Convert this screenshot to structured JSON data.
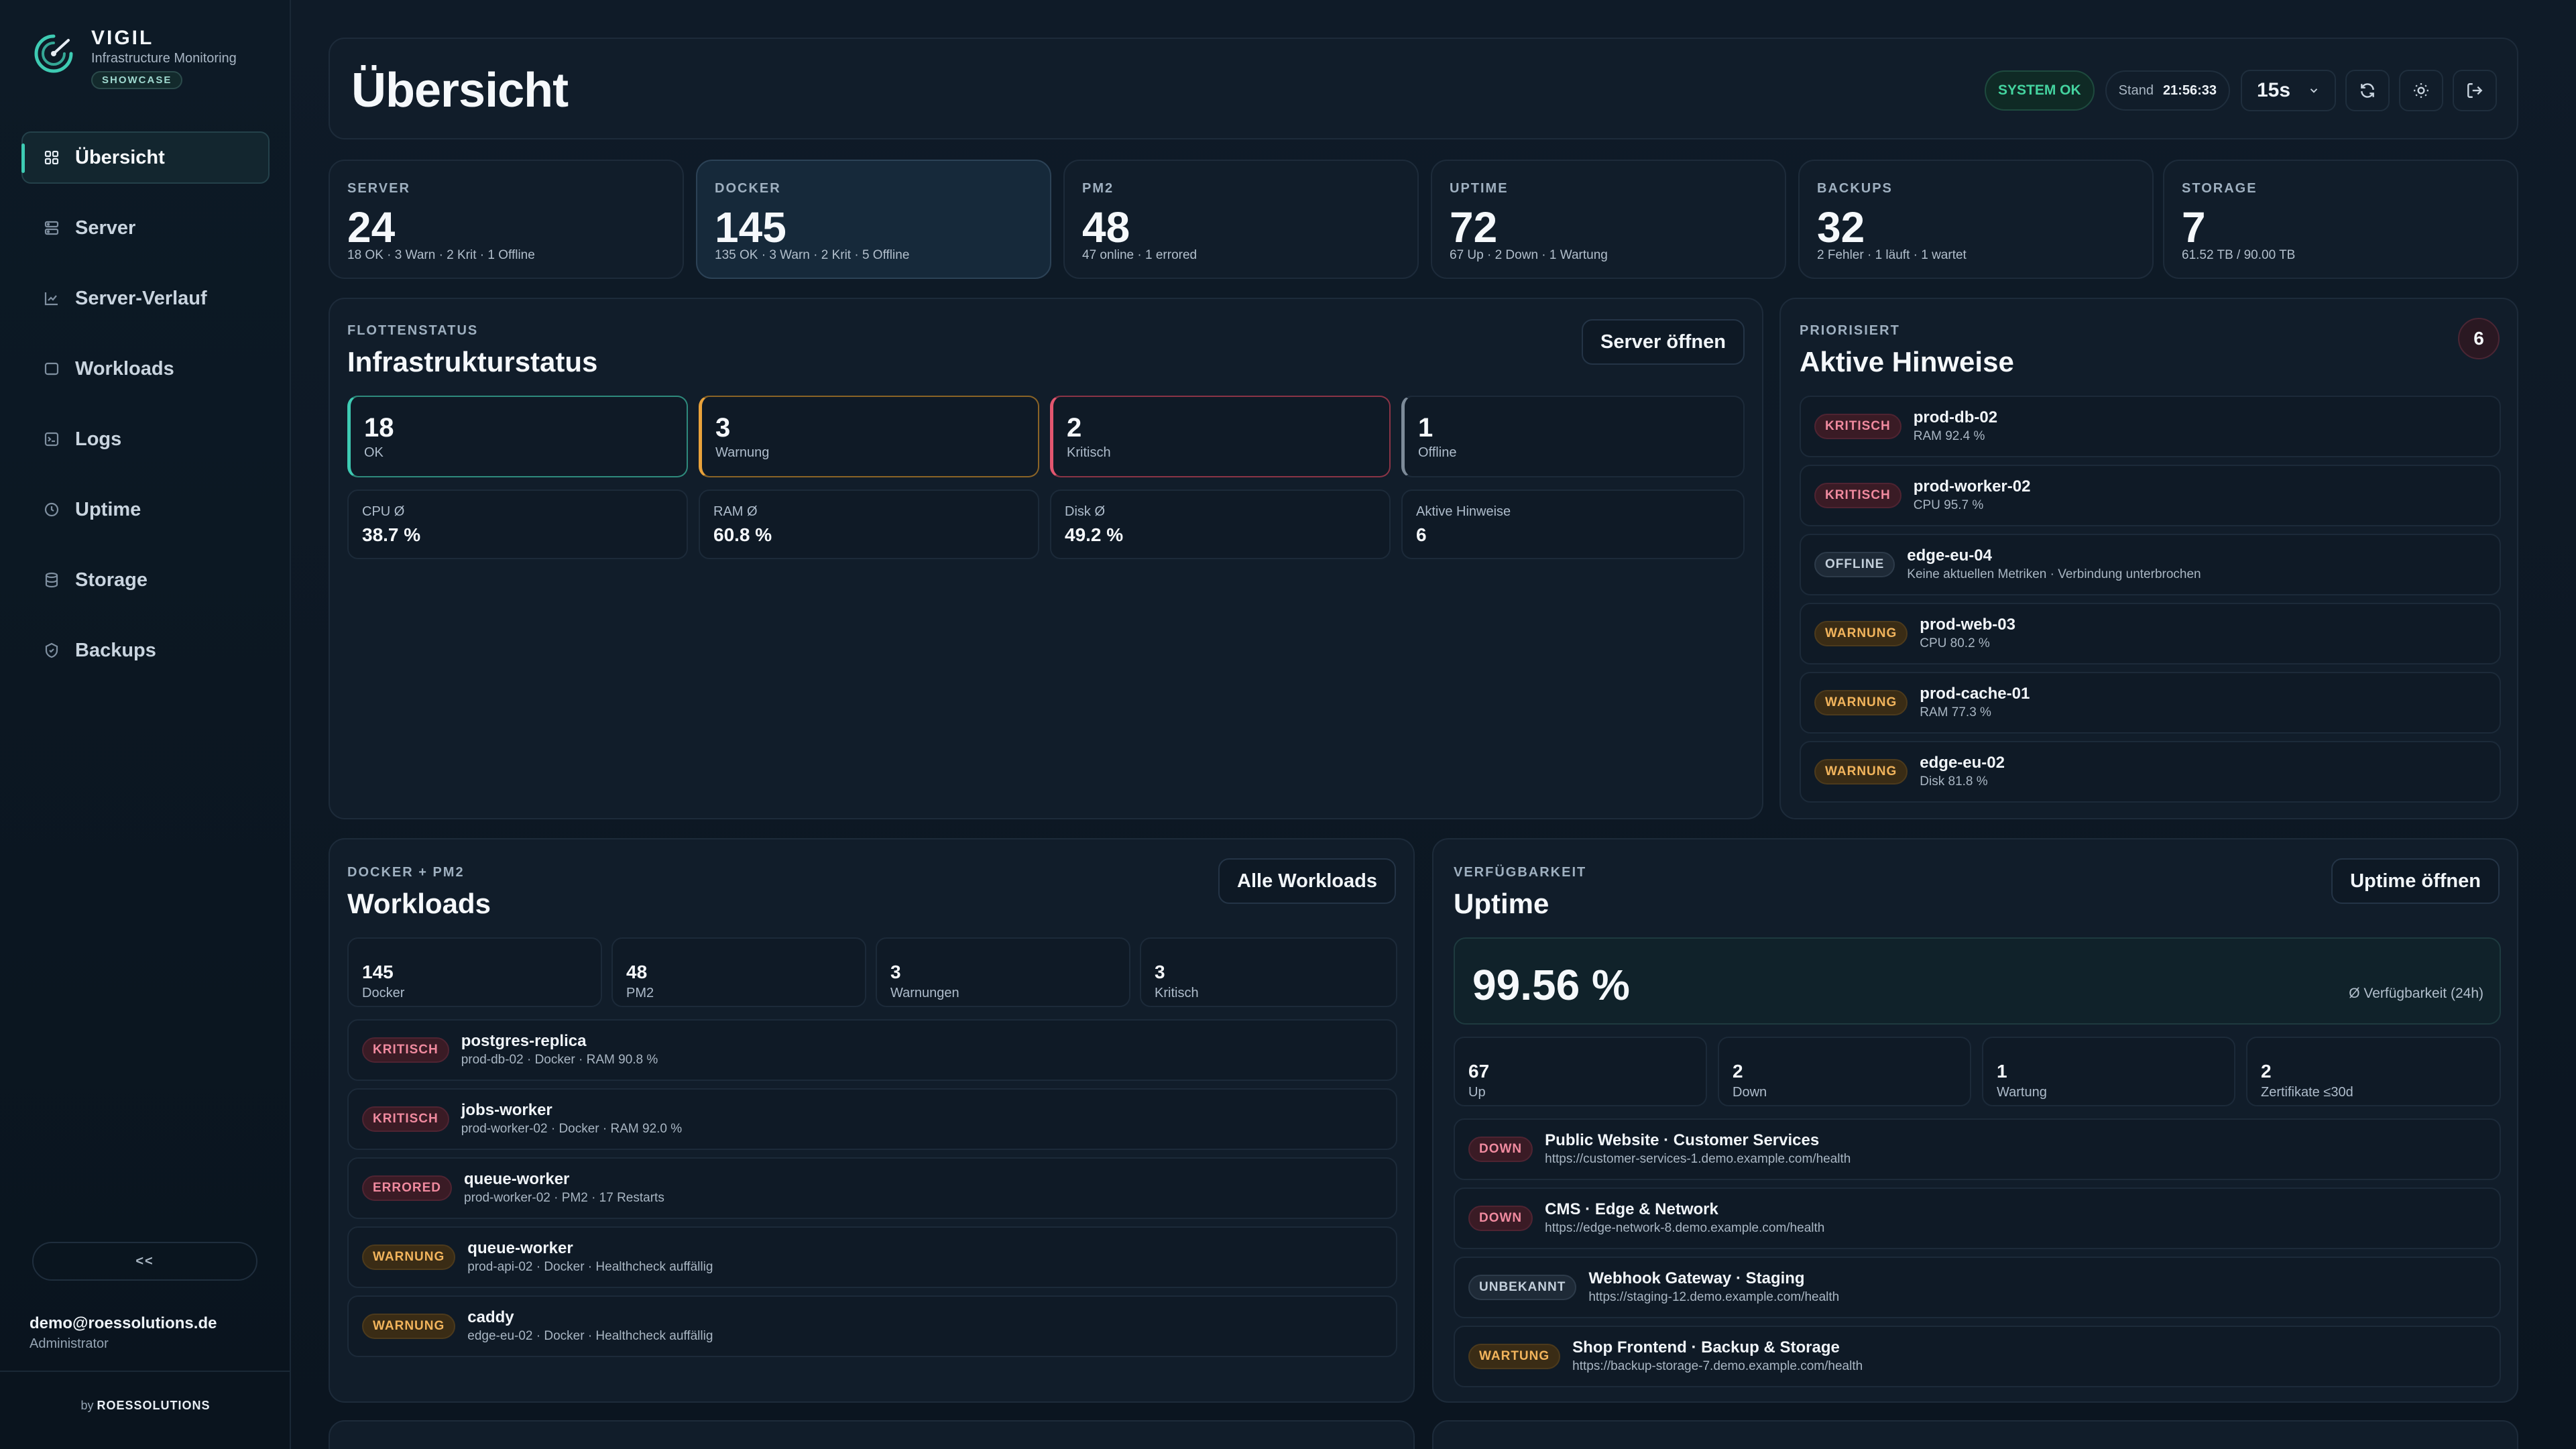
{
  "brand": {
    "name": "VIGIL",
    "subtitle": "Infrastructure Monitoring",
    "badge": "SHOWCASE"
  },
  "nav": [
    {
      "label": "Übersicht",
      "icon": "grid-icon",
      "active": true
    },
    {
      "label": "Server",
      "icon": "server-icon"
    },
    {
      "label": "Server-Verlauf",
      "icon": "trend-chart-icon"
    },
    {
      "label": "Workloads",
      "icon": "window-icon"
    },
    {
      "label": "Logs",
      "icon": "logs-icon"
    },
    {
      "label": "Uptime",
      "icon": "clock-icon"
    },
    {
      "label": "Storage",
      "icon": "database-icon"
    },
    {
      "label": "Backups",
      "icon": "shield-icon"
    }
  ],
  "sidebar": {
    "collapse_label": "<<",
    "user_email": "demo@roessolutions.de",
    "user_role": "Administrator",
    "byline_prefix": "by",
    "byline_brand": "ROESSOLUTIONS"
  },
  "header": {
    "title": "Übersicht",
    "status": "SYSTEM OK",
    "stand_label": "Stand",
    "stand_time": "21:56:33",
    "interval": "15s"
  },
  "stats": [
    {
      "label": "SERVER",
      "value": "24",
      "sub": "18 OK · 3 Warn · 2 Krit · 1 Offline"
    },
    {
      "label": "DOCKER",
      "value": "145",
      "sub": "135 OK · 3 Warn · 2 Krit · 5 Offline"
    },
    {
      "label": "PM2",
      "value": "48",
      "sub": "47 online · 1 errored"
    },
    {
      "label": "UPTIME",
      "value": "72",
      "sub": "67 Up · 2 Down · 1 Wartung"
    },
    {
      "label": "BACKUPS",
      "value": "32",
      "sub": "2 Fehler · 1 läuft · 1 wartet"
    },
    {
      "label": "STORAGE",
      "value": "7",
      "sub": "61.52 TB / 90.00 TB"
    }
  ],
  "fleet": {
    "eyebrow": "FLOTTENSTATUS",
    "title": "Infrastrukturstatus",
    "button": "Server öffnen",
    "status": [
      {
        "value": "18",
        "label": "OK",
        "color": "#3ecbb3"
      },
      {
        "value": "3",
        "label": "Warnung",
        "color": "#e9a23b"
      },
      {
        "value": "2",
        "label": "Kritisch",
        "color": "#e2566f"
      },
      {
        "value": "1",
        "label": "Offline",
        "color": "#7d8b99"
      }
    ],
    "metrics": [
      {
        "label": "CPU Ø",
        "value": "38.7 %"
      },
      {
        "label": "RAM Ø",
        "value": "60.8 %"
      },
      {
        "label": "Disk Ø",
        "value": "49.2 %"
      },
      {
        "label": "Aktive Hinweise",
        "value": "6"
      }
    ]
  },
  "alerts": {
    "eyebrow": "PRIORISIERT",
    "title": "Aktive Hinweise",
    "count": "6",
    "items": [
      {
        "badge": "KRITISCH",
        "type": "crit",
        "title": "prod-db-02",
        "sub": "RAM 92.4 %"
      },
      {
        "badge": "KRITISCH",
        "type": "crit",
        "title": "prod-worker-02",
        "sub": "CPU 95.7 %"
      },
      {
        "badge": "OFFLINE",
        "type": "off",
        "title": "edge-eu-04",
        "sub": "Keine aktuellen Metriken · Verbindung unterbrochen"
      },
      {
        "badge": "WARNUNG",
        "type": "warn",
        "title": "prod-web-03",
        "sub": "CPU 80.2 %"
      },
      {
        "badge": "WARNUNG",
        "type": "warn",
        "title": "prod-cache-01",
        "sub": "RAM 77.3 %"
      },
      {
        "badge": "WARNUNG",
        "type": "warn",
        "title": "edge-eu-02",
        "sub": "Disk 81.8 %"
      }
    ]
  },
  "workloads": {
    "eyebrow": "DOCKER + PM2",
    "title": "Workloads",
    "button": "Alle Workloads",
    "counts": [
      {
        "value": "145",
        "label": "Docker"
      },
      {
        "value": "48",
        "label": "PM2"
      },
      {
        "value": "3",
        "label": "Warnungen"
      },
      {
        "value": "3",
        "label": "Kritisch"
      }
    ],
    "items": [
      {
        "badge": "KRITISCH",
        "type": "crit",
        "title": "postgres-replica",
        "sub": "prod-db-02 · Docker · RAM 90.8 %"
      },
      {
        "badge": "KRITISCH",
        "type": "crit",
        "title": "jobs-worker",
        "sub": "prod-worker-02 · Docker · RAM 92.0 %"
      },
      {
        "badge": "ERRORED",
        "type": "crit",
        "title": "queue-worker",
        "sub": "prod-worker-02 · PM2 · 17 Restarts"
      },
      {
        "badge": "WARNUNG",
        "type": "warn",
        "title": "queue-worker",
        "sub": "prod-api-02 · Docker · Healthcheck auffällig"
      },
      {
        "badge": "WARNUNG",
        "type": "warn",
        "title": "caddy",
        "sub": "edge-eu-02 · Docker · Healthcheck auffällig"
      }
    ]
  },
  "uptime": {
    "eyebrow": "VERFÜGBARKEIT",
    "title": "Uptime",
    "button": "Uptime öffnen",
    "availability": "99.56 %",
    "availability_label": "Ø Verfügbarkeit (24h)",
    "counts": [
      {
        "value": "67",
        "label": "Up"
      },
      {
        "value": "2",
        "label": "Down"
      },
      {
        "value": "1",
        "label": "Wartung"
      },
      {
        "value": "2",
        "label": "Zertifikate ≤30d"
      }
    ],
    "items": [
      {
        "badge": "DOWN",
        "type": "crit",
        "title": "Public Website · Customer Services",
        "sub": "https://customer-services-1.demo.example.com/health"
      },
      {
        "badge": "DOWN",
        "type": "crit",
        "title": "CMS · Edge & Network",
        "sub": "https://edge-network-8.demo.example.com/health"
      },
      {
        "badge": "UNBEKANNT",
        "type": "off",
        "title": "Webhook Gateway · Staging",
        "sub": "https://staging-12.demo.example.com/health"
      },
      {
        "badge": "WARTUNG",
        "type": "warn",
        "title": "Shop Frontend · Backup & Storage",
        "sub": "https://backup-storage-7.demo.example.com/health"
      }
    ]
  }
}
